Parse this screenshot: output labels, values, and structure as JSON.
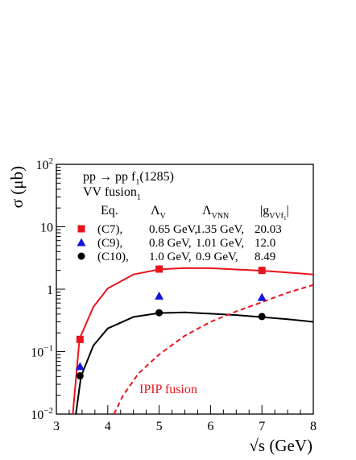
{
  "chart_data": {
    "type": "line",
    "xlabel_symbol": "√s",
    "xlabel_unit": " (GeV)",
    "ylabel_symbol": "σ",
    "ylabel_unit": " (μb)",
    "xlim": [
      3,
      8
    ],
    "ylim": [
      0.01,
      100
    ],
    "y_scale": "log",
    "x_ticks": [
      "3",
      "4",
      "5",
      "6",
      "7",
      "8"
    ],
    "y_ticks": [
      {
        "base": "10",
        "exp": "2",
        "value": 100
      },
      {
        "base": "10",
        "exp": "",
        "value": 10
      },
      {
        "base": "1",
        "exp": "",
        "value": 1
      },
      {
        "base": "10",
        "exp": "−1",
        "value": 0.1
      },
      {
        "base": "10",
        "exp": "−2",
        "value": 0.01
      }
    ],
    "colors": {
      "red": "#e8141c",
      "blue": "#1515d8",
      "black": "#000000"
    },
    "process": {
      "main": "pp → pp f",
      "sub": "1",
      "tail": "(1285)"
    },
    "mechanism": {
      "main": "VV fusion",
      "sub": "1"
    },
    "legend_header": {
      "eq": "Eq.",
      "lambda_v": {
        "main": "Λ",
        "sub": "V"
      },
      "lambda_vnn": {
        "main": "Λ",
        "sub": "VNN"
      },
      "coupling": {
        "main": "|g",
        "sub": "VVf",
        "subsub": "1",
        "tail": "|"
      }
    },
    "legend_rows": [
      {
        "marker": "square",
        "color": "#e8141c",
        "eq": "(C7),",
        "lv": "0.65 GeV,",
        "lvnn": "1.35 GeV,",
        "g": "20.03"
      },
      {
        "marker": "triangle",
        "color": "#1515d8",
        "eq": "(C9),",
        "lv": "0.8 GeV,",
        "lvnn": "1.01 GeV,",
        "g": "12.0"
      },
      {
        "marker": "circle",
        "color": "#000000",
        "eq": "(C10),",
        "lv": "1.0 GeV,",
        "lvnn": "0.9 GeV,",
        "g": "8.49"
      }
    ],
    "annotation": "IPIP fusion",
    "series": [
      {
        "style": "solid",
        "color": "#e8141c",
        "x": [
          3.32,
          3.45,
          3.72,
          4.0,
          4.5,
          5.0,
          5.5,
          6.0,
          6.5,
          7.0,
          7.5,
          8.0
        ],
        "y": [
          0.01,
          0.16,
          0.52,
          1.03,
          1.72,
          2.08,
          2.18,
          2.17,
          2.07,
          1.98,
          1.85,
          1.72
        ]
      },
      {
        "style": "solid",
        "color": "#000000",
        "x": [
          3.38,
          3.48,
          3.72,
          4.0,
          4.5,
          5.0,
          5.5,
          6.0,
          6.5,
          7.0,
          7.5,
          8.0
        ],
        "y": [
          0.01,
          0.04,
          0.125,
          0.235,
          0.36,
          0.415,
          0.425,
          0.405,
          0.385,
          0.358,
          0.33,
          0.3
        ]
      },
      {
        "style": "dashed",
        "color": "#e8141c",
        "x": [
          4.12,
          4.3,
          4.6,
          5.0,
          5.5,
          6.0,
          6.5,
          7.0,
          7.5,
          8.0
        ],
        "y": [
          0.01,
          0.02,
          0.045,
          0.09,
          0.18,
          0.3,
          0.44,
          0.62,
          0.88,
          1.17
        ]
      }
    ],
    "points": [
      {
        "marker": "square",
        "color": "#e8141c",
        "x": [
          3.46,
          5.0,
          7.0
        ],
        "y": [
          0.157,
          2.1,
          2.0
        ]
      },
      {
        "marker": "triangle",
        "color": "#1515d8",
        "x": [
          3.46,
          5.0,
          7.0
        ],
        "y": [
          0.058,
          0.78,
          0.74
        ]
      },
      {
        "marker": "circle",
        "color": "#000000",
        "x": [
          3.46,
          5.0,
          7.0
        ],
        "y": [
          0.041,
          0.42,
          0.365
        ]
      }
    ]
  }
}
